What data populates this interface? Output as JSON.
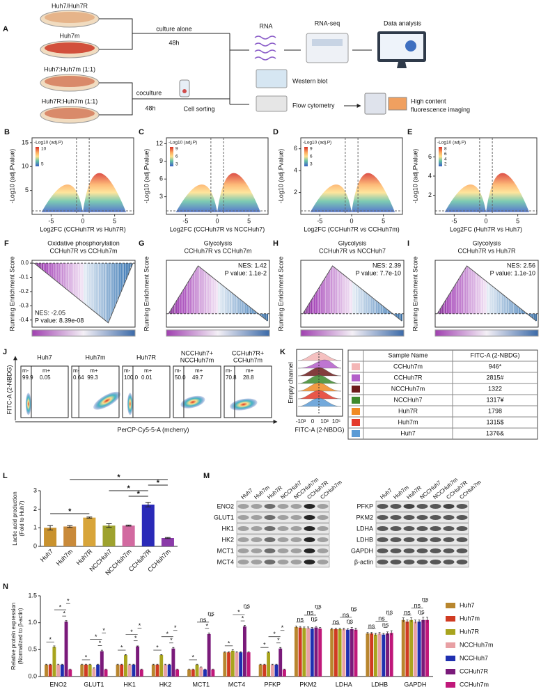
{
  "panel_a": {
    "label": "A",
    "huh7_huh7r": "Huh7/Huh7R",
    "huh7m": "Huh7m",
    "mix1": "Huh7:Huh7m (1:1)",
    "mix2": "Huh7R:Huh7m (1:1)",
    "culture_alone": "culture alone",
    "time1": "48h",
    "coculture": "coculture",
    "time2": "48h",
    "cell_sorting": "Cell sorting",
    "rna": "RNA",
    "rnaseq": "RNA-seq",
    "data_analysis": "Data analysis",
    "western": "Western blot",
    "flow": "Flow cytometry",
    "imaging": [
      "High content",
      "fluorescence imaging"
    ]
  },
  "volcanoes": [
    {
      "label": "B",
      "ylabel": "-Log10 (adj.Pvalue)",
      "xlabel": "Log2FC (CCHuh7R vs Huh7R)",
      "legend_title": "-Log10 (adj.P)",
      "legend_ticks": [
        10,
        5
      ],
      "xlim": [
        -8,
        8
      ],
      "ylim": [
        0,
        16
      ],
      "xticks": [
        -5,
        0,
        5
      ],
      "yticks": [
        5,
        10,
        15
      ]
    },
    {
      "label": "C",
      "ylabel": "-Log10 (adj.Pvalue)",
      "xlabel": "Log2FC (CCHuh7R vs NCCHuh7)",
      "legend_title": "-Log10 (adj.P)",
      "legend_ticks": [
        9,
        6,
        3
      ],
      "xlim": [
        -8,
        8
      ],
      "ylim": [
        0,
        13
      ],
      "xticks": [
        -5,
        0,
        5
      ],
      "yticks": [
        3,
        6,
        9,
        12
      ]
    },
    {
      "label": "D",
      "ylabel": "-Log10 (adj.Pvalue)",
      "xlabel": "Log2FC (CCHuh7R vs CCHuh7m)",
      "legend_title": "-Log10 (adj.P)",
      "legend_ticks": [
        9,
        6,
        3
      ],
      "xlim": [
        -8,
        8
      ],
      "ylim": [
        0,
        7
      ],
      "xticks": [
        -5,
        0,
        5
      ],
      "yticks": [
        2,
        4,
        6
      ]
    },
    {
      "label": "E",
      "ylabel": "-Log10 (adj.Pvalue)",
      "xlabel": "Log2FC (Huh7R vs Huh7)",
      "legend_title": "-Log10 (adj.P)",
      "legend_ticks": [
        8,
        6,
        4,
        2
      ],
      "xlim": [
        -8,
        8
      ],
      "ylim": [
        0,
        8
      ],
      "xticks": [
        -5,
        0,
        5
      ],
      "yticks": [
        2,
        4,
        6
      ]
    }
  ],
  "gsea": [
    {
      "label": "F",
      "title": [
        "Oxidative phosphorylation",
        "CCHuh7R vs CCHuh7m"
      ],
      "ylabel": "Running Enrichment Score",
      "nes": "NES: -2.05",
      "p": "P value: 8.39e-08",
      "ylim": [
        -0.45,
        0.02
      ],
      "yticks": [
        {
          "value": 0,
          "label": "0.0"
        },
        {
          "value": -0.1,
          "label": "-0.1"
        },
        {
          "value": -0.2,
          "label": "-0.2"
        },
        {
          "value": -0.3,
          "label": "-0.3"
        },
        {
          "value": -0.4,
          "label": "-0.4"
        }
      ]
    },
    {
      "label": "G",
      "title": [
        "Glycolysis",
        "CCHuh7R vs CCHuh7m"
      ],
      "ylabel": "Running Enrichment Score",
      "nes": "NES: 1.42",
      "p": "P value: 1.1e-2"
    },
    {
      "label": "H",
      "title": [
        "Glycolysis",
        "CCHuh7R vs NCCHuh7"
      ],
      "ylabel": "Running Enrichment Score",
      "nes": "NES: 2.39",
      "p": "P value: 7.7e-10"
    },
    {
      "label": "I",
      "title": [
        "Glycolysis",
        "CCHuh7R vs Huh7R"
      ],
      "ylabel": "Running Enrichment Score",
      "nes": "NES: 2.56",
      "p": "P value: 1.1e-10"
    }
  ],
  "panel_j": {
    "label": "J",
    "ylabel": "FITC-A (2-NBDG)",
    "xlabel": "PerCP-Cy5-5-A (mcherry)",
    "plots": [
      {
        "title": [
          "Huh7"
        ],
        "neg_label": "m-",
        "neg": "99.9",
        "pos_label": "m+",
        "pos": "0.05"
      },
      {
        "title": [
          "Huh7m"
        ],
        "neg_label": "m-",
        "neg": "0.64",
        "pos_label": "m+",
        "pos": "99.3"
      },
      {
        "title": [
          "Huh7R"
        ],
        "neg_label": "m-",
        "neg": "100.0",
        "pos_label": "m+",
        "pos": "0.01"
      },
      {
        "title": [
          "NCCHuh7+",
          "NCCHuh7m"
        ],
        "neg_label": "m-",
        "neg": "50.0",
        "pos_label": "m+",
        "pos": "49.7"
      },
      {
        "title": [
          "CCHuh7R+",
          "CCHuh7m"
        ],
        "neg_label": "m-",
        "neg": "70.8",
        "pos_label": "m+",
        "pos": "28.8"
      }
    ]
  },
  "panel_k": {
    "label": "K",
    "ylabel": "Empty channel",
    "xlabel": "FITC-A (2-NBDG)",
    "xticks": [
      "-10³",
      "0",
      "10³",
      "10⁵"
    ],
    "headers": [
      "Sample Name",
      "FITC-A (2-NBDG)"
    ],
    "rows": [
      {
        "color": "#f4b6b6",
        "name": "CCHuh7m",
        "value": "946*"
      },
      {
        "color": "#b35ec9",
        "name": "CCHuh7R",
        "value": "2815#"
      },
      {
        "color": "#6e1c1c",
        "name": "NCCHuh7m",
        "value": "1322"
      },
      {
        "color": "#3d8a2c",
        "name": "NCCHuh7",
        "value": "1317¥"
      },
      {
        "color": "#f08a24",
        "name": "Huh7R",
        "value": "1798"
      },
      {
        "color": "#e4392a",
        "name": "Huh7m",
        "value": "1315$"
      },
      {
        "color": "#5b9bd5",
        "name": "Huh7",
        "value": "1376&"
      }
    ]
  },
  "panel_l": {
    "label": "L",
    "type": "bar",
    "ylabel": [
      "Lactic acid production",
      "(Fold to Huh7)"
    ],
    "categories": [
      "Huh7",
      "Huh7m",
      "Huh7R",
      "NCCHuh7",
      "NCCHuh7m",
      "CCHuh7R",
      "CCHuh7m"
    ],
    "values": [
      1.0,
      1.07,
      1.55,
      1.12,
      1.12,
      2.25,
      0.45
    ],
    "errors": [
      0.12,
      0.05,
      0.03,
      0.1,
      0.03,
      0.12,
      0.03
    ],
    "colors": [
      "#c9922e",
      "#c98a3a",
      "#d8a53a",
      "#9ea22e",
      "#d26aa0",
      "#2a2ab8",
      "#8a3aa8"
    ],
    "ylim": [
      0,
      3
    ],
    "yticks": [
      0,
      1,
      2,
      3
    ],
    "significance": [
      "*",
      "*",
      "*",
      "*",
      "*"
    ]
  },
  "panel_m": {
    "label": "M",
    "lanes": [
      "Huh7",
      "Huh7m",
      "Huh7R",
      "NCCHuh7",
      "NCCHuh7m",
      "CCHuh7R",
      "CCHuh7m"
    ],
    "left_proteins": [
      "ENO2",
      "GLUT1",
      "HK1",
      "HK2",
      "MCT1",
      "MCT4"
    ],
    "right_proteins": [
      "PFKP",
      "PKM2",
      "LDHA",
      "LDHB",
      "GAPDH",
      "β-actin"
    ]
  },
  "panel_n": {
    "label": "N",
    "type": "grouped_bar",
    "ylabel": [
      "Relative protein expression",
      "(Normalized to β-actin)"
    ],
    "categories": [
      "ENO2",
      "GLUT1",
      "HK1",
      "HK2",
      "MCT1",
      "MCT4",
      "PFKP",
      "PKM2",
      "LDHA",
      "LDHB",
      "GAPDH"
    ],
    "ylim": [
      0,
      1.5
    ],
    "yticks": [
      {
        "value": 0,
        "label": "0.0"
      },
      {
        "value": 0.5,
        "label": "0.5"
      },
      {
        "value": 1,
        "label": "1.0"
      },
      {
        "value": 1.5,
        "label": "1.5"
      }
    ],
    "series": [
      {
        "name": "Huh7",
        "color": "#b8862e",
        "values": [
          0.22,
          0.22,
          0.22,
          0.22,
          0.13,
          0.45,
          0.22,
          0.92,
          0.88,
          0.8,
          1.05
        ],
        "errors": [
          0.01,
          0.01,
          0.01,
          0.01,
          0.01,
          0.01,
          0.01,
          0.02,
          0.02,
          0.02,
          0.04
        ]
      },
      {
        "name": "Huh7m",
        "color": "#d03b22",
        "values": [
          0.22,
          0.22,
          0.22,
          0.22,
          0.13,
          0.45,
          0.22,
          0.91,
          0.88,
          0.8,
          1.02
        ],
        "errors": [
          0.01,
          0.01,
          0.01,
          0.01,
          0.01,
          0.01,
          0.01,
          0.02,
          0.02,
          0.02,
          0.03
        ]
      },
      {
        "name": "Huh7R",
        "color": "#a8a41e",
        "values": [
          0.55,
          0.22,
          0.4,
          0.4,
          0.22,
          0.48,
          0.45,
          0.9,
          0.88,
          0.78,
          1.05
        ],
        "errors": [
          0.02,
          0.01,
          0.01,
          0.01,
          0.01,
          0.02,
          0.01,
          0.02,
          0.02,
          0.02,
          0.04
        ]
      },
      {
        "name": "NCCHuh7m",
        "color": "#e8a0a4",
        "values": [
          0.22,
          0.15,
          0.22,
          0.22,
          0.17,
          0.45,
          0.22,
          0.9,
          0.88,
          0.8,
          1.02
        ],
        "errors": [
          0.01,
          0.01,
          0.01,
          0.01,
          0.01,
          0.01,
          0.01,
          0.02,
          0.02,
          0.02,
          0.03
        ]
      },
      {
        "name": "NCCHuh7",
        "color": "#1f2fb0",
        "values": [
          0.22,
          0.22,
          0.22,
          0.22,
          0.13,
          0.45,
          0.22,
          0.89,
          0.87,
          0.78,
          1.02
        ],
        "errors": [
          0.01,
          0.01,
          0.01,
          0.01,
          0.01,
          0.01,
          0.01,
          0.02,
          0.02,
          0.02,
          0.03
        ]
      },
      {
        "name": "CCHuh7R",
        "color": "#7a1a7a",
        "values": [
          1.02,
          0.47,
          0.56,
          0.52,
          0.79,
          0.93,
          0.52,
          0.91,
          0.88,
          0.8,
          1.05
        ],
        "errors": [
          0.02,
          0.02,
          0.01,
          0.02,
          0.02,
          0.02,
          0.02,
          0.02,
          0.03,
          0.03,
          0.05
        ]
      },
      {
        "name": "CCHuh7m",
        "color": "#c0187a",
        "values": [
          0.13,
          0.13,
          0.13,
          0.13,
          0.13,
          0.45,
          0.13,
          0.89,
          0.87,
          0.81,
          1.05
        ],
        "errors": [
          0.01,
          0.01,
          0.01,
          0.01,
          0.01,
          0.01,
          0.01,
          0.02,
          0.03,
          0.04,
          0.05
        ]
      }
    ],
    "significance": [
      [
        "*",
        "*",
        "*",
        "*"
      ],
      [
        "*",
        "*",
        "*",
        "*"
      ],
      [
        "*",
        "*",
        "*",
        "*"
      ],
      [
        "*",
        "*",
        "*",
        "*"
      ],
      [
        "*",
        "*",
        "ns",
        "ns"
      ],
      [
        "*",
        "*",
        "*",
        "ns"
      ],
      [
        "*",
        "*",
        "*",
        "*"
      ],
      [
        "ns",
        "ns",
        "ns",
        "ns"
      ],
      [
        "ns",
        "ns",
        "ns",
        "ns"
      ],
      [
        "ns",
        "ns",
        "ns",
        "ns"
      ],
      [
        "ns",
        "ns",
        "ns",
        "ns"
      ]
    ]
  }
}
